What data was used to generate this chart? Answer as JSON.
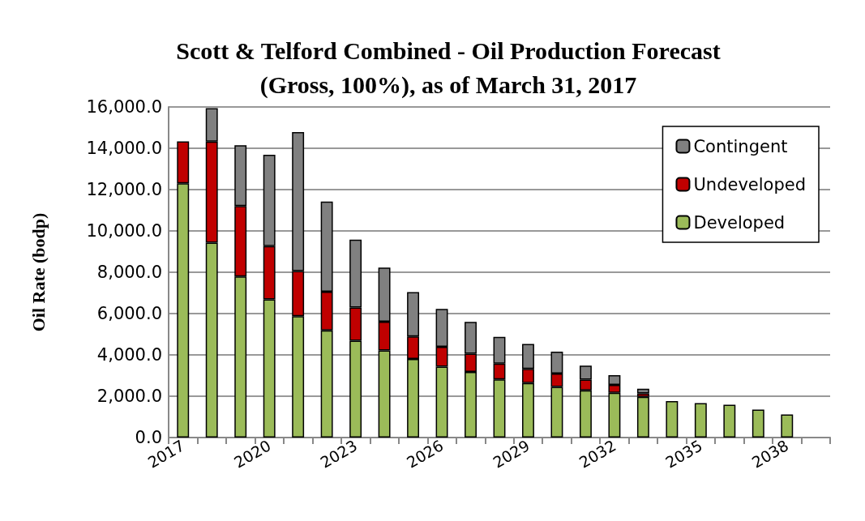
{
  "chart_data": {
    "type": "bar",
    "title": "Scott & Telford Combined - Oil Production Forecast\n(Gross, 100%), as of March 31, 2017",
    "ylabel": "Oil Rate (bodp)",
    "categories": [
      "2017",
      null,
      null,
      "2020",
      null,
      null,
      "2023",
      null,
      null,
      "2026",
      null,
      null,
      "2029",
      null,
      null,
      "2032",
      null,
      null,
      "2035",
      null,
      null,
      "2038",
      null
    ],
    "stacked": true,
    "series": [
      {
        "name": "Developed",
        "color": "#9bbb59",
        "values": [
          12300,
          9430,
          7790,
          6690,
          5870,
          5190,
          4690,
          4220,
          3800,
          3430,
          3180,
          2810,
          2640,
          2450,
          2280,
          2170,
          1970,
          1760,
          1670,
          1590,
          1350,
          1120,
          null
        ]
      },
      {
        "name": "Undeveloped",
        "color": "#c00000",
        "values": [
          2030,
          4890,
          3420,
          2570,
          2190,
          1870,
          1600,
          1390,
          1090,
          960,
          880,
          770,
          680,
          650,
          520,
          380,
          170,
          null,
          null,
          null,
          null,
          null,
          null
        ]
      },
      {
        "name": "Contingent",
        "color": "#808080",
        "values": [
          null,
          1620,
          2940,
          4430,
          6720,
          4360,
          3290,
          2620,
          2150,
          1840,
          1540,
          1290,
          1210,
          1060,
          680,
          470,
          220,
          null,
          null,
          null,
          null,
          null,
          null
        ]
      }
    ],
    "ylim": [
      0,
      16000
    ],
    "yticks": [
      {
        "value": 0,
        "label": "0.0"
      },
      {
        "value": 2000,
        "label": "2,000.0"
      },
      {
        "value": 4000,
        "label": "4,000.0"
      },
      {
        "value": 6000,
        "label": "6,000.0"
      },
      {
        "value": 8000,
        "label": "8,000.0"
      },
      {
        "value": 10000,
        "label": "10,000.0"
      },
      {
        "value": 12000,
        "label": "12,000.0"
      },
      {
        "value": 14000,
        "label": "14,000.0"
      },
      {
        "value": 16000,
        "label": "16,000.0"
      }
    ],
    "grid": "y",
    "legend": "top right"
  }
}
